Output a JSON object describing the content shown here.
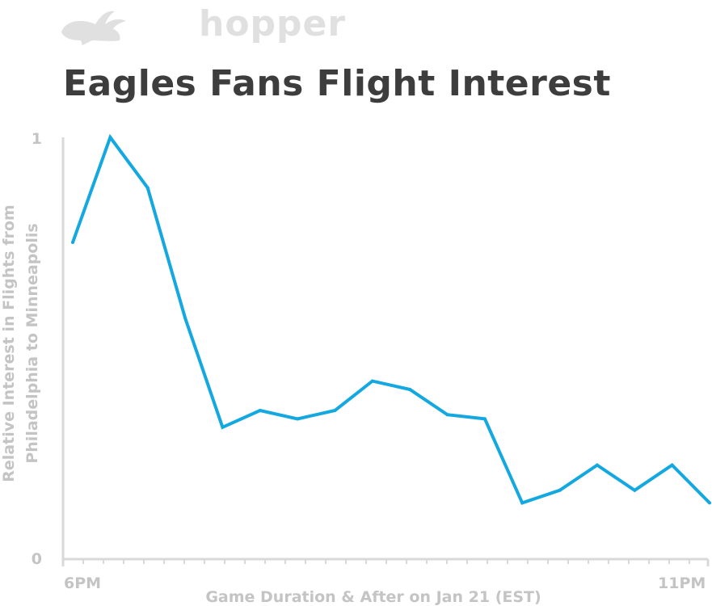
{
  "logo": {
    "text": "hopper",
    "icon": "rabbit-icon",
    "color": "#e0e0e0"
  },
  "chart_data": {
    "type": "line",
    "title": "Eagles Fans Flight Interest",
    "xlabel": "Game Duration & After on Jan 21 (EST)",
    "ylabel": [
      "Relative Interest in Flights from",
      "Philadelphia to Minneapolis"
    ],
    "x_tick_labels": [
      {
        "label": "6PM",
        "x": 0
      },
      {
        "label": "11PM",
        "x": 16
      }
    ],
    "y_tick_labels": [
      {
        "label": "1",
        "y": 1
      },
      {
        "label": "0",
        "y": 0
      }
    ],
    "xlim": [
      0,
      17
    ],
    "ylim": [
      0,
      1
    ],
    "series": [
      {
        "color": "#14a8e1",
        "x": [
          0,
          1,
          2,
          3,
          4,
          5,
          6,
          7,
          8,
          9,
          10,
          11,
          12,
          13,
          14,
          15,
          16,
          17
        ],
        "values": [
          0.75,
          1.0,
          0.88,
          0.57,
          0.31,
          0.35,
          0.33,
          0.35,
          0.42,
          0.4,
          0.34,
          0.33,
          0.13,
          0.16,
          0.22,
          0.16,
          0.22,
          0.13
        ]
      }
    ],
    "grid": false,
    "legend": "none",
    "colors": {
      "axis": "#d9d9d9",
      "tick_text": "#c4c4c4",
      "title": "#3d3d3d"
    }
  }
}
